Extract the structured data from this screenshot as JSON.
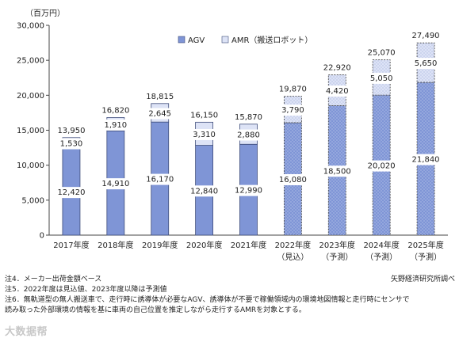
{
  "chart_data": {
    "type": "bar",
    "stacked": true,
    "unit_label": "（百万円）",
    "categories": [
      "2017年度",
      "2018年度",
      "2019年度",
      "2020年度",
      "2021年度",
      "2022年度",
      "2023年度",
      "2024年度",
      "2025年度"
    ],
    "category_sub": [
      "",
      "",
      "",
      "",
      "",
      "（見込）",
      "（予測）",
      "（予測）",
      "（予測）"
    ],
    "series": [
      {
        "name": "AGV",
        "values": [
          12420,
          14910,
          16170,
          12840,
          12990,
          16080,
          18500,
          20020,
          21840
        ],
        "color": "#7f95d6"
      },
      {
        "name": "AMR（搬送ロボット）",
        "values": [
          1530,
          1910,
          2645,
          3310,
          2880,
          3790,
          4420,
          5050,
          5650
        ],
        "color": "#dde3f6"
      }
    ],
    "totals": [
      13950,
      16820,
      18815,
      16150,
      15870,
      19870,
      22920,
      25070,
      27490
    ],
    "estimated_from_index": 5,
    "ylim": [
      0,
      30000
    ],
    "yticks": [
      0,
      5000,
      10000,
      15000,
      20000,
      25000,
      30000
    ],
    "ytick_labels": [
      "0",
      "5,000",
      "10,000",
      "15,000",
      "20,000",
      "25,000",
      "30,000"
    ],
    "legend_position": "top-center",
    "grid": false
  },
  "notes": {
    "note4": "注4．メーカー出荷金額ベース",
    "note5": "注5．2022年度は見込値、2023年度以降は予測値",
    "note6_line1": "注6．無軌道型の無人搬送車で、走行時に誘導体が必要なAGV、誘導体が不要で稼働領域内の環境地図情報と走行時にセンサで",
    "note6_line2": "読み取った外部環境の情報を基に車両の自己位置を推定しながら走行するAMRを対象とする。",
    "source": "矢野経済研究所調べ"
  },
  "watermark": "大数据帮"
}
